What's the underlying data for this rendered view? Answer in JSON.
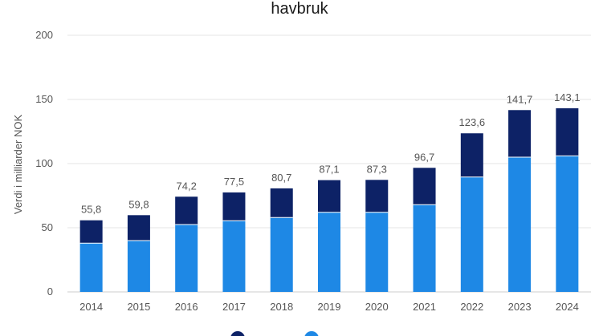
{
  "chart_data": {
    "type": "bar",
    "stacked": true,
    "title": "havbruk",
    "xlabel": "",
    "ylabel": "Verdi i milliarder NOK",
    "ylim": [
      0,
      200
    ],
    "yticks": [
      "0",
      "50",
      "100",
      "150",
      "200"
    ],
    "grid": true,
    "legend_position": "bottom",
    "categories": [
      "2014",
      "2015",
      "2016",
      "2017",
      "2018",
      "2019",
      "2020",
      "2021",
      "2022",
      "2023",
      "2024"
    ],
    "series": [
      {
        "name": "",
        "color": "#1e88e5",
        "values": [
          38.0,
          40.0,
          52.5,
          55.5,
          58.0,
          62.0,
          62.0,
          68.0,
          89.5,
          105.0,
          106.0
        ]
      },
      {
        "name": "",
        "color": "#0d2266",
        "values": [
          17.8,
          19.8,
          21.7,
          22.0,
          22.7,
          25.1,
          25.3,
          28.7,
          34.1,
          36.7,
          37.1
        ]
      }
    ],
    "data_labels": [
      "55,8",
      "59,8",
      "74,2",
      "77,5",
      "80,7",
      "87,1",
      "87,3",
      "96,7",
      "123,6",
      "141,7",
      "143,1"
    ]
  }
}
